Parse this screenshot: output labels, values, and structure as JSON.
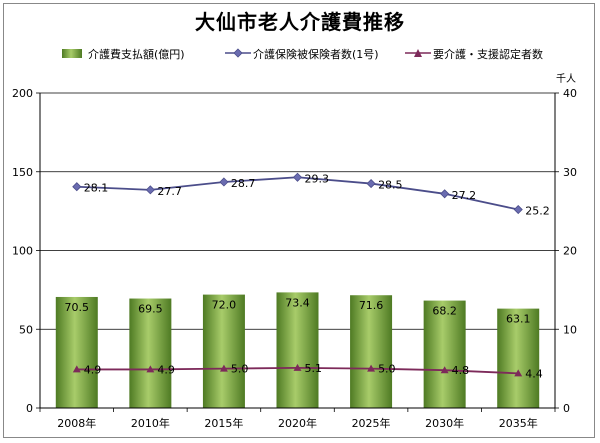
{
  "title": "大仙市老人介護費推移",
  "unit_right": "千人",
  "legend": {
    "bar": "介護費支払額(億円)",
    "line1": "介護保険被保険者数(1号)",
    "line2": "要介護・支援認定者数"
  },
  "colors": {
    "bar_dark": "#4e7a23",
    "bar_light": "#a8cc6a",
    "line1": "#4b4d8a",
    "marker1": "#6a6cb0",
    "line2": "#7d2a5a",
    "grid": "#000000"
  },
  "chart_data": {
    "type": "bar",
    "title": "大仙市老人介護費推移",
    "categories": [
      "2008年",
      "2010年",
      "2015年",
      "2020年",
      "2025年",
      "2030年",
      "2035年"
    ],
    "series": [
      {
        "name": "介護費支払額(億円)",
        "kind": "bar",
        "axis": "left",
        "values": [
          70.5,
          69.5,
          72.0,
          73.4,
          71.6,
          68.2,
          63.1
        ]
      },
      {
        "name": "介護保険被保険者数(1号)",
        "kind": "line",
        "axis": "right",
        "values": [
          28.1,
          27.7,
          28.7,
          29.3,
          28.5,
          27.2,
          25.2
        ]
      },
      {
        "name": "要介護・支援認定者数",
        "kind": "line",
        "axis": "right",
        "values": [
          4.9,
          4.9,
          5.0,
          5.1,
          5.0,
          4.8,
          4.4
        ]
      }
    ],
    "y_left": {
      "ylim": [
        0,
        200
      ],
      "ticks": [
        0,
        50,
        100,
        150,
        200
      ]
    },
    "y_right": {
      "ylim": [
        0,
        40
      ],
      "ticks": [
        0,
        10,
        20,
        30,
        40
      ],
      "label": "千人"
    },
    "grid": true,
    "legend_position": "top"
  }
}
